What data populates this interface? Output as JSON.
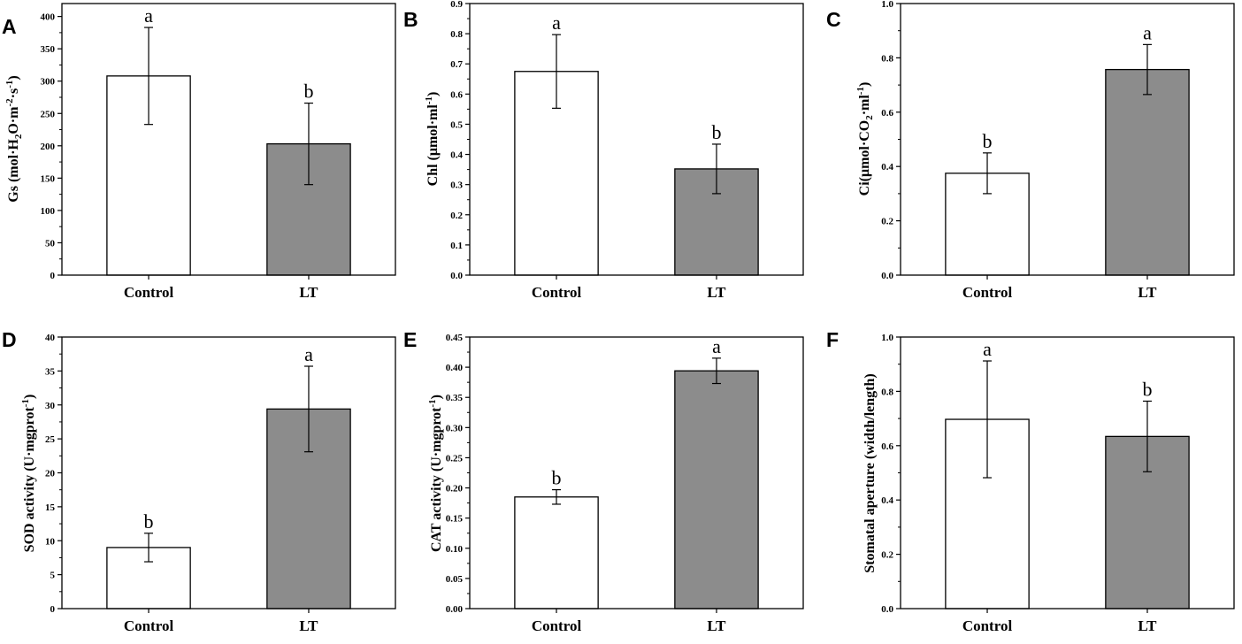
{
  "colors": {
    "control_bar": "#ffffff",
    "lt_bar": "#8c8c8c",
    "axis": "#000000"
  },
  "chart_data": [
    {
      "panel": "A",
      "type": "bar",
      "categories": [
        "Control",
        "LT"
      ],
      "values": [
        308,
        203
      ],
      "errors": [
        75,
        63
      ],
      "significance": [
        "a",
        "b"
      ],
      "ylim": [
        0,
        420
      ],
      "ticks": [
        0,
        50,
        100,
        150,
        200,
        250,
        300,
        350,
        400
      ],
      "tick_labels": [
        "0",
        "50",
        "100",
        "150",
        "200",
        "250",
        "300",
        "350",
        "400"
      ],
      "ylabel": [
        {
          "text": "Gs (mol·H"
        },
        {
          "text": "2",
          "sub": true
        },
        {
          "text": "O·m"
        },
        {
          "text": "-2",
          "sup": true
        },
        {
          "text": "·s"
        },
        {
          "text": "-1",
          "sup": true
        },
        {
          "text": ")"
        }
      ]
    },
    {
      "panel": "B",
      "type": "bar",
      "categories": [
        "Control",
        "LT"
      ],
      "values": [
        0.675,
        0.352
      ],
      "errors": [
        0.122,
        0.082
      ],
      "significance": [
        "a",
        "b"
      ],
      "ylim": [
        0,
        0.9
      ],
      "ticks": [
        0,
        0.1,
        0.2,
        0.3,
        0.4,
        0.5,
        0.6,
        0.7,
        0.8,
        0.9
      ],
      "tick_labels": [
        "0.0",
        "0.1",
        "0.2",
        "0.3",
        "0.4",
        "0.5",
        "0.6",
        "0.7",
        "0.8",
        "0.9"
      ],
      "ylabel": [
        {
          "text": "Chl (μmol·ml"
        },
        {
          "text": "-1",
          "sup": true
        },
        {
          "text": ")"
        }
      ]
    },
    {
      "panel": "C",
      "type": "bar",
      "categories": [
        "Control",
        "LT"
      ],
      "values": [
        0.375,
        0.757
      ],
      "errors": [
        0.075,
        0.092
      ],
      "significance": [
        "b",
        "a"
      ],
      "ylim": [
        0,
        1.0
      ],
      "ticks": [
        0,
        0.2,
        0.4,
        0.6,
        0.8,
        1.0
      ],
      "tick_labels": [
        "0.0",
        "0.2",
        "0.4",
        "0.6",
        "0.8",
        "1.0"
      ],
      "ylabel": [
        {
          "text": "Ci(μmol·CO"
        },
        {
          "text": "2",
          "sub": true
        },
        {
          "text": "·ml"
        },
        {
          "text": "-1",
          "sup": true
        },
        {
          "text": ")"
        }
      ]
    },
    {
      "panel": "D",
      "type": "bar",
      "categories": [
        "Control",
        "LT"
      ],
      "values": [
        9.0,
        29.4
      ],
      "errors": [
        2.1,
        6.3
      ],
      "significance": [
        "b",
        "a"
      ],
      "ylim": [
        0,
        40
      ],
      "ticks": [
        0,
        5,
        10,
        15,
        20,
        25,
        30,
        35,
        40
      ],
      "tick_labels": [
        "0",
        "5",
        "10",
        "15",
        "20",
        "25",
        "30",
        "35",
        "40"
      ],
      "ylabel": [
        {
          "text": "SOD activity (U·mgprot"
        },
        {
          "text": "-1",
          "sup": true
        },
        {
          "text": ")"
        }
      ]
    },
    {
      "panel": "E",
      "type": "bar",
      "categories": [
        "Control",
        "LT"
      ],
      "values": [
        0.185,
        0.394
      ],
      "errors": [
        0.012,
        0.021
      ],
      "significance": [
        "b",
        "a"
      ],
      "ylim": [
        0,
        0.45
      ],
      "ticks": [
        0,
        0.05,
        0.1,
        0.15,
        0.2,
        0.25,
        0.3,
        0.35,
        0.4,
        0.45
      ],
      "tick_labels": [
        "0.00",
        "0.05",
        "0.10",
        "0.15",
        "0.20",
        "0.25",
        "0.30",
        "0.35",
        "0.40",
        "0.45"
      ],
      "ylabel": [
        {
          "text": "CAT activity (U·mgprot"
        },
        {
          "text": "-1",
          "sup": true
        },
        {
          "text": ")"
        }
      ]
    },
    {
      "panel": "F",
      "type": "bar",
      "categories": [
        "Control",
        "LT"
      ],
      "values": [
        0.697,
        0.634
      ],
      "errors": [
        0.215,
        0.13
      ],
      "significance": [
        "a",
        "b"
      ],
      "ylim": [
        0,
        1.0
      ],
      "ticks": [
        0,
        0.2,
        0.4,
        0.6,
        0.8,
        1.0
      ],
      "tick_labels": [
        "0.0",
        "0.2",
        "0.4",
        "0.6",
        "0.8",
        "1.0"
      ],
      "ylabel": [
        {
          "text": "Stomatal aperture (width/length)"
        }
      ]
    }
  ]
}
